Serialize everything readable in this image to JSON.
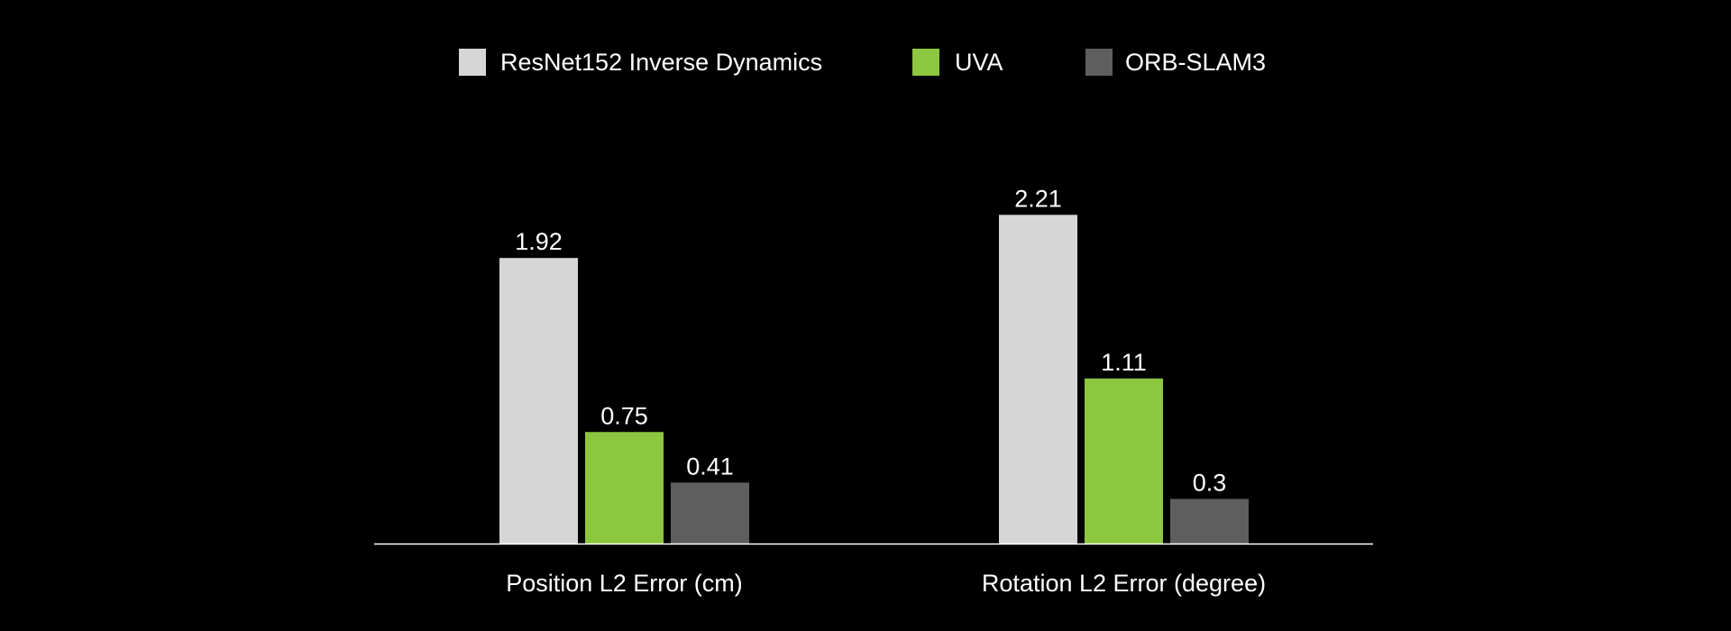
{
  "chart_data": {
    "type": "bar",
    "categories": [
      "Position L2 Error (cm)",
      "Rotation L2 Error (degree)"
    ],
    "series": [
      {
        "name": "ResNet152 Inverse Dynamics",
        "color": "#d6d6d6",
        "values": [
          1.92,
          2.21
        ]
      },
      {
        "name": "UVA",
        "color": "#8dc63f",
        "values": [
          0.75,
          1.11
        ]
      },
      {
        "name": "ORB-SLAM3",
        "color": "#5e5e5e",
        "values": [
          0.41,
          0.3
        ]
      }
    ],
    "value_labels": [
      [
        "1.92",
        "2.21"
      ],
      [
        "0.75",
        "1.11"
      ],
      [
        "0.41",
        "0.3"
      ]
    ],
    "title": "",
    "xlabel": "",
    "ylabel": "",
    "ylim": [
      0,
      2.4
    ],
    "grid": false,
    "legend_position": "top-center",
    "axis_color": "#ffffff",
    "background": "#000000"
  }
}
